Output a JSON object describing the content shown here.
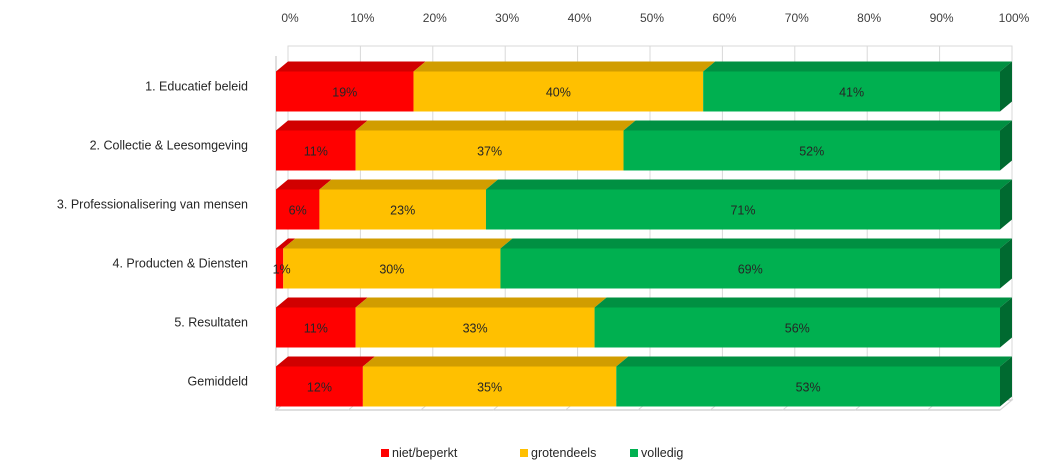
{
  "chart_data": {
    "type": "bar",
    "orientation": "horizontal",
    "stacked": "100%",
    "style": "3d",
    "title": "",
    "xlabel": "",
    "ylabel": "",
    "xlim": [
      0,
      100
    ],
    "x_ticks": [
      "0%",
      "10%",
      "20%",
      "30%",
      "40%",
      "50%",
      "60%",
      "70%",
      "80%",
      "90%",
      "100%"
    ],
    "x_axis_position": "top",
    "grid": true,
    "legend_position": "bottom",
    "categories": [
      "1. Educatief beleid",
      "2. Collectie & Leesomgeving",
      "3. Professionalisering van mensen",
      "4. Producten & Diensten",
      "5. Resultaten",
      "Gemiddeld"
    ],
    "series": [
      {
        "name": "niet/beperkt",
        "color": "#ff0000",
        "values": [
          19,
          11,
          6,
          1,
          11,
          12
        ],
        "labels": [
          "19%",
          "11%",
          "6%",
          "1%",
          "11%",
          "12%"
        ]
      },
      {
        "name": "grotendeels",
        "color": "#ffc000",
        "values": [
          40,
          37,
          23,
          30,
          33,
          35
        ],
        "labels": [
          "40%",
          "37%",
          "23%",
          "30%",
          "33%",
          "35%"
        ]
      },
      {
        "name": "volledig",
        "color": "#00b050",
        "values": [
          41,
          52,
          71,
          69,
          56,
          53
        ],
        "labels": [
          "41%",
          "52%",
          "71%",
          "69%",
          "56%",
          "53%"
        ]
      }
    ]
  }
}
